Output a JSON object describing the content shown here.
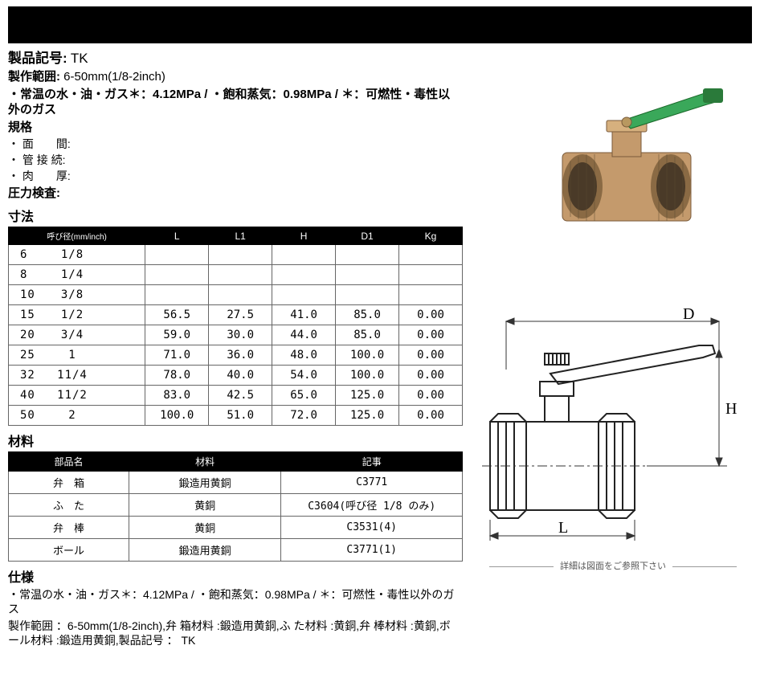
{
  "header": {
    "product_code_label": "製品記号:",
    "product_code": "TK",
    "range_label": "製作範囲:",
    "range": "6-50mm(1/8-2inch)",
    "fluid_line": "・常温の水・油・ガス＊：4.12MPa / ・飽和蒸気：0.98MPa / ＊：可燃性・毒性以外のガス",
    "std_label": "規格",
    "std_1": "・ 面　　間:",
    "std_2": "・ 管 接 続:",
    "std_3": "・ 肉　　厚:",
    "pressure_test": "圧力検査:"
  },
  "dimensions": {
    "title": "寸法",
    "headers": [
      "呼び径(mm/inch)",
      "L",
      "L1",
      "H",
      "D1",
      "Kg"
    ],
    "rows": [
      {
        "mm": "6",
        "inch": "1/8",
        "L": "",
        "L1": "",
        "H": "",
        "D1": "",
        "Kg": ""
      },
      {
        "mm": "8",
        "inch": "1/4",
        "L": "",
        "L1": "",
        "H": "",
        "D1": "",
        "Kg": ""
      },
      {
        "mm": "10",
        "inch": "3/8",
        "L": "",
        "L1": "",
        "H": "",
        "D1": "",
        "Kg": ""
      },
      {
        "mm": "15",
        "inch": "1/2",
        "L": "56.5",
        "L1": "27.5",
        "H": "41.0",
        "D1": "85.0",
        "Kg": "0.00"
      },
      {
        "mm": "20",
        "inch": "3/4",
        "L": "59.0",
        "L1": "30.0",
        "H": "44.0",
        "D1": "85.0",
        "Kg": "0.00"
      },
      {
        "mm": "25",
        "inch": "1",
        "L": "71.0",
        "L1": "36.0",
        "H": "48.0",
        "D1": "100.0",
        "Kg": "0.00"
      },
      {
        "mm": "32",
        "inch": "11/4",
        "L": "78.0",
        "L1": "40.0",
        "H": "54.0",
        "D1": "100.0",
        "Kg": "0.00"
      },
      {
        "mm": "40",
        "inch": "11/2",
        "L": "83.0",
        "L1": "42.5",
        "H": "65.0",
        "D1": "125.0",
        "Kg": "0.00"
      },
      {
        "mm": "50",
        "inch": "2",
        "L": "100.0",
        "L1": "51.0",
        "H": "72.0",
        "D1": "125.0",
        "Kg": "0.00"
      }
    ]
  },
  "materials": {
    "title": "材料",
    "headers": [
      "部品名",
      "材料",
      "記事"
    ],
    "rows": [
      {
        "part": "弁　箱",
        "mat": "鍛造用黄銅",
        "note": "C3771"
      },
      {
        "part": "ふ　た",
        "mat": "黄銅",
        "note": "C3604(呼び径 1/8 のみ)"
      },
      {
        "part": "弁　棒",
        "mat": "黄銅",
        "note": "C3531(4)"
      },
      {
        "part": "ボール",
        "mat": "鍛造用黄銅",
        "note": "C3771(1)"
      }
    ]
  },
  "spec": {
    "title": "仕様",
    "line1": "・常温の水・油・ガス＊：4.12MPa / ・飽和蒸気：0.98MPa / ＊：可燃性・毒性以外のガス",
    "line2": "製作範囲 ：6-50mm(1/8-2inch),弁 箱材料 :鍛造用黄銅,ふ た材料 :黄銅,弁 棒材料 :黄銅,ボール材料 :鍛造用黄銅,製品記号 ： TK"
  },
  "diagram": {
    "caption": "詳細は図面をご参照下さい",
    "labels": {
      "D": "D",
      "H": "H",
      "L": "L"
    },
    "colors": {
      "body": "#c9a178",
      "handle": "#3aa85a",
      "handle_tip": "#2a7a3a",
      "outline": "#222",
      "thin": "#333"
    }
  }
}
